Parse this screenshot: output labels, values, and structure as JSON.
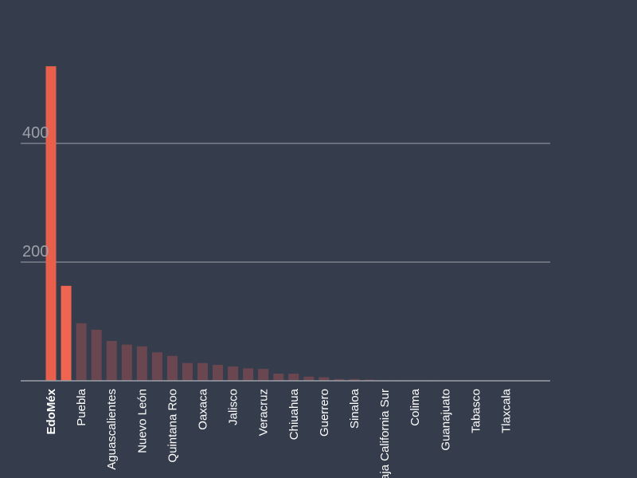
{
  "chart_data": {
    "type": "bar",
    "title": "",
    "xlabel": "",
    "ylabel": "",
    "ylim": [
      0,
      540
    ],
    "yticks": [
      200,
      400
    ],
    "grid": true,
    "highlight_color": "#e8604c",
    "secondary_color": "#f0654f",
    "muted_color": "#6a4750",
    "categories": [
      "EdoMéx",
      "",
      "Puebla",
      "",
      "Aguascalientes",
      "",
      "Nuevo León",
      "",
      "Quintana Roo",
      "",
      "Oaxaca",
      "",
      "Jalisco",
      "",
      "Veracruz",
      "",
      "Chiuahua",
      "",
      "Guerrero",
      "",
      "Sinaloa",
      "",
      "Baja California Sur",
      "",
      "Colima",
      "",
      "Guanajuato",
      "",
      "Tabasco",
      "",
      "Tlaxcala",
      ""
    ],
    "values": [
      530,
      160,
      97,
      86,
      67,
      61,
      58,
      48,
      42,
      30,
      30,
      27,
      24,
      21,
      20,
      12,
      12,
      7,
      6,
      3,
      3,
      2,
      1,
      1,
      1,
      1,
      0,
      0,
      0,
      0,
      0,
      0
    ]
  }
}
